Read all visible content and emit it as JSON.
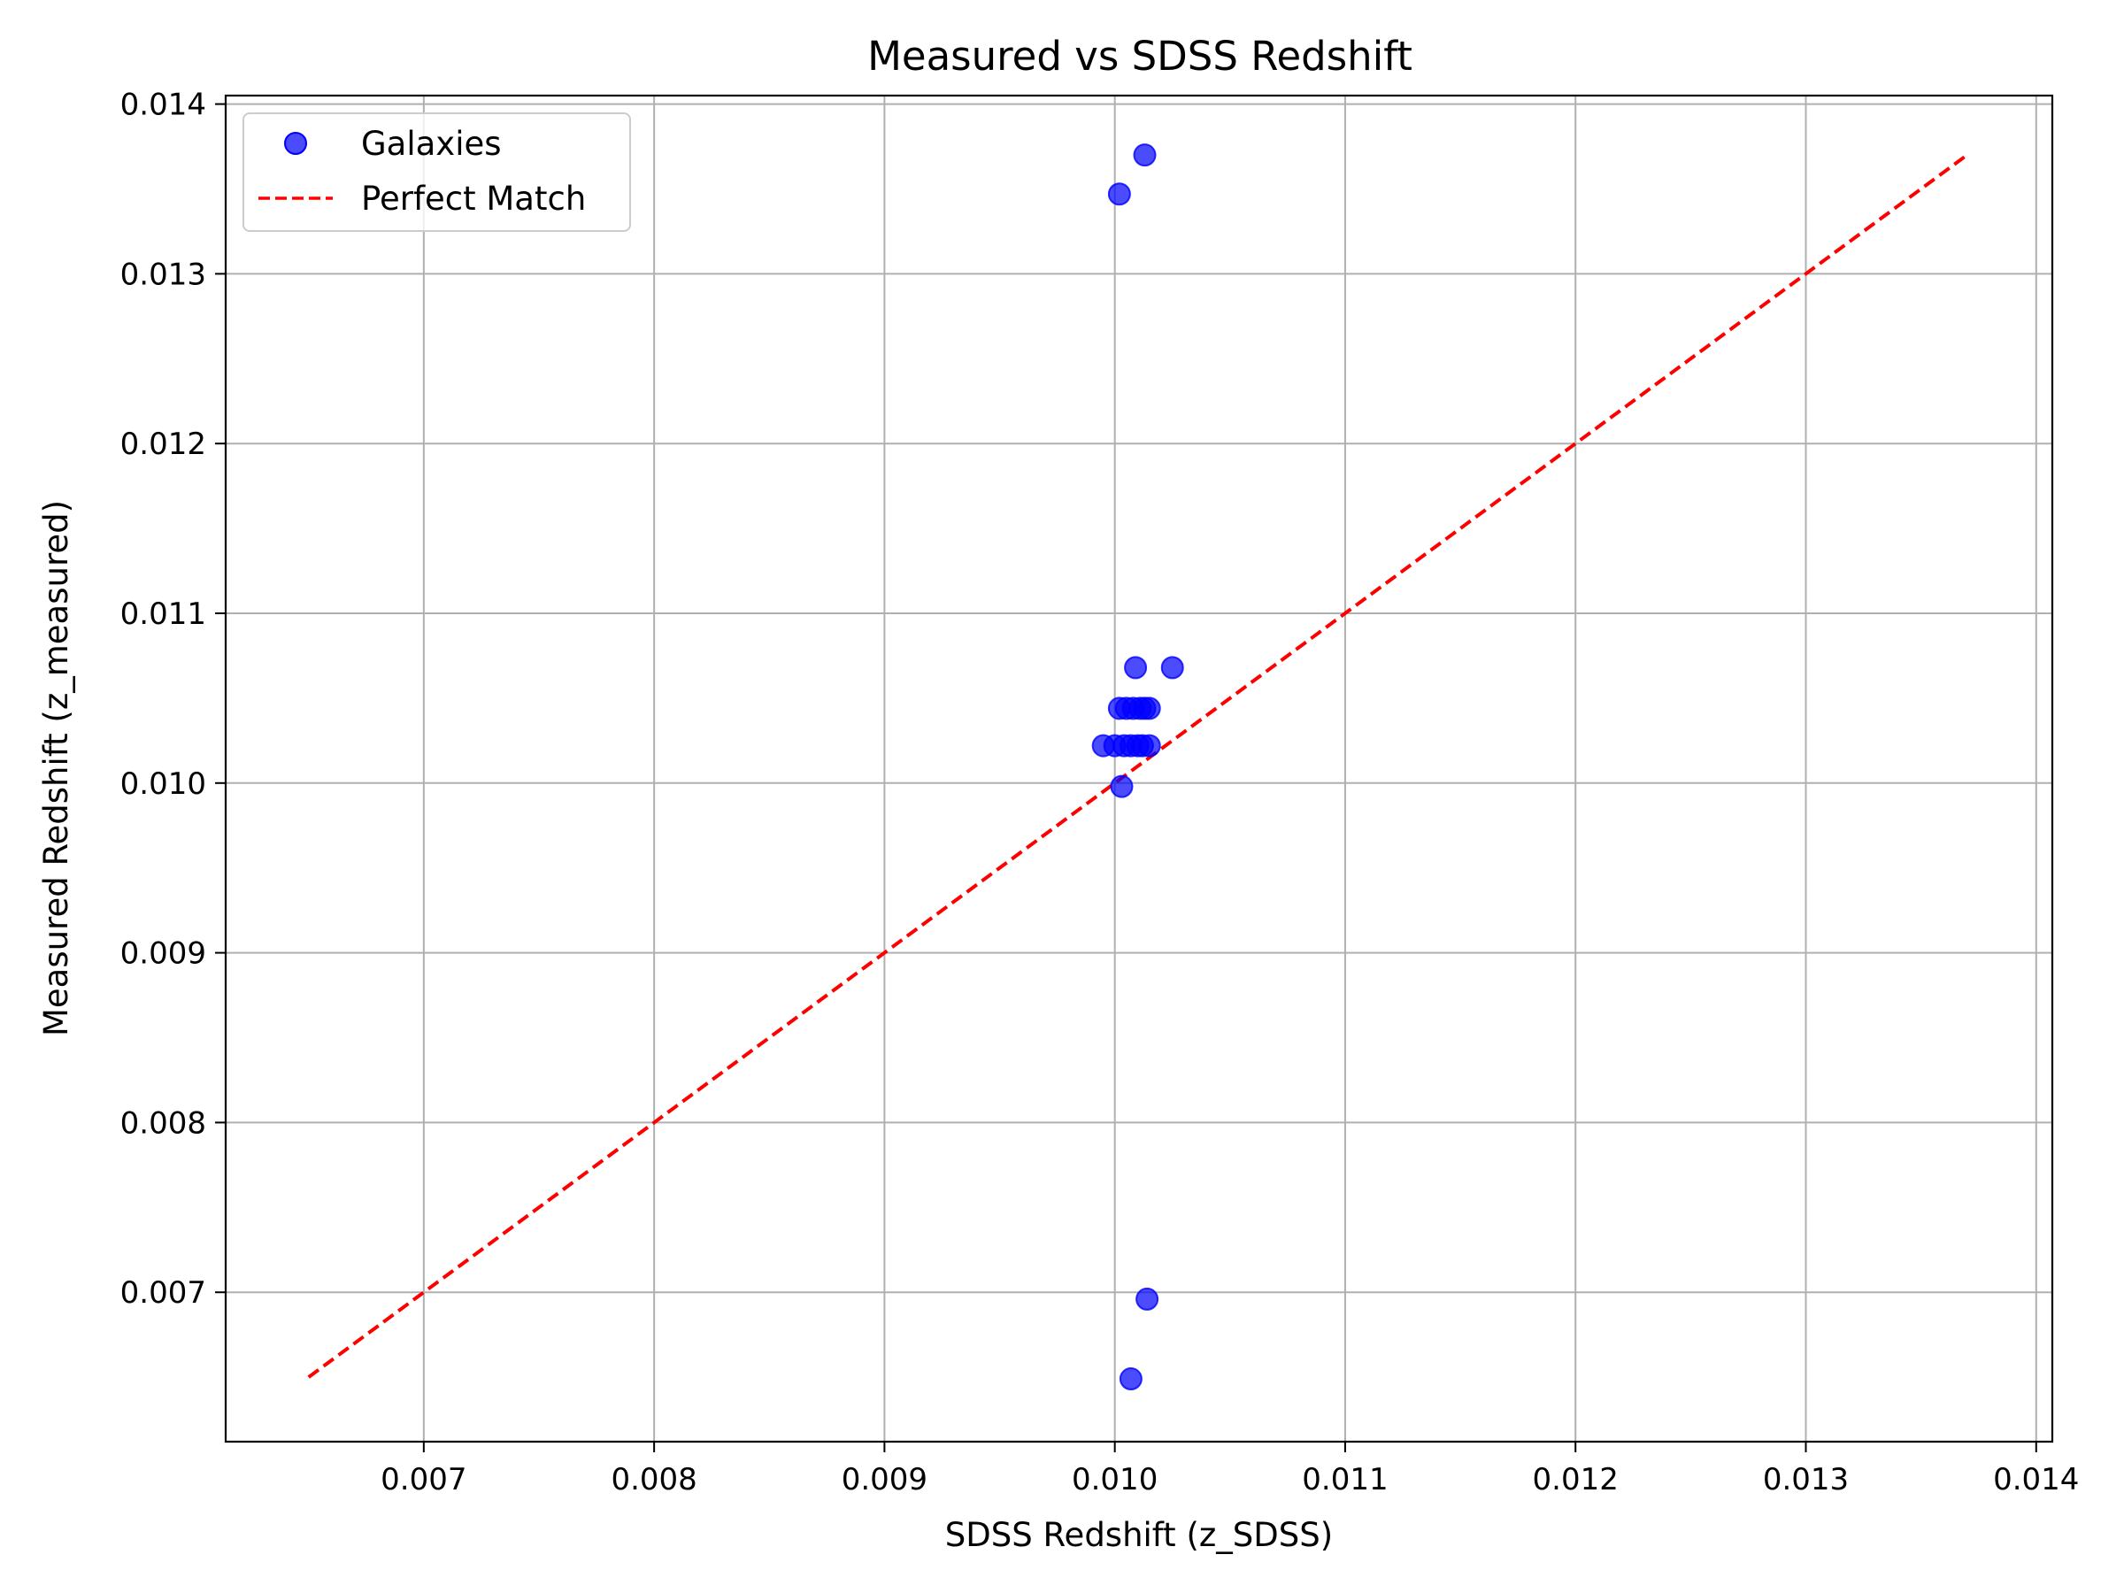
{
  "chart_data": {
    "type": "scatter",
    "title": "Measured vs SDSS Redshift",
    "xlabel": "SDSS Redshift (z_SDSS)",
    "ylabel": "Measured Redshift (z_measured)",
    "xlim": [
      0.00614,
      0.01407
    ],
    "ylim": [
      0.00612,
      0.01405
    ],
    "xticks": [
      0.007,
      0.008,
      0.009,
      0.01,
      0.011,
      0.012,
      0.013,
      0.014
    ],
    "yticks": [
      0.007,
      0.008,
      0.009,
      0.01,
      0.011,
      0.012,
      0.013,
      0.014
    ],
    "xtick_labels": [
      "0.007",
      "0.008",
      "0.009",
      "0.010",
      "0.011",
      "0.012",
      "0.013",
      "0.014"
    ],
    "ytick_labels": [
      "0.007",
      "0.008",
      "0.009",
      "0.010",
      "0.011",
      "0.012",
      "0.013",
      "0.014"
    ],
    "grid": true,
    "legend_position": "top-left",
    "series": [
      {
        "name": "Galaxies",
        "kind": "scatter",
        "color": "#0000ff",
        "points": [
          {
            "x": 0.01013,
            "y": 0.0137
          },
          {
            "x": 0.01002,
            "y": 0.01347
          },
          {
            "x": 0.01009,
            "y": 0.01068
          },
          {
            "x": 0.01025,
            "y": 0.01068
          },
          {
            "x": 0.01002,
            "y": 0.01044
          },
          {
            "x": 0.01005,
            "y": 0.01044
          },
          {
            "x": 0.01008,
            "y": 0.01044
          },
          {
            "x": 0.01011,
            "y": 0.01044
          },
          {
            "x": 0.01013,
            "y": 0.01044
          },
          {
            "x": 0.01015,
            "y": 0.01044
          },
          {
            "x": 0.00995,
            "y": 0.01022
          },
          {
            "x": 0.01,
            "y": 0.01022
          },
          {
            "x": 0.01004,
            "y": 0.01022
          },
          {
            "x": 0.01007,
            "y": 0.01022
          },
          {
            "x": 0.0101,
            "y": 0.01022
          },
          {
            "x": 0.01012,
            "y": 0.01022
          },
          {
            "x": 0.01015,
            "y": 0.01022
          },
          {
            "x": 0.01003,
            "y": 0.00998
          },
          {
            "x": 0.01014,
            "y": 0.00696
          },
          {
            "x": 0.01007,
            "y": 0.00649
          }
        ]
      },
      {
        "name": "Perfect Match",
        "kind": "line",
        "style": "dashed",
        "color": "#ff0000",
        "x": [
          0.0065,
          0.0137
        ],
        "y": [
          0.0065,
          0.0137
        ]
      }
    ]
  }
}
